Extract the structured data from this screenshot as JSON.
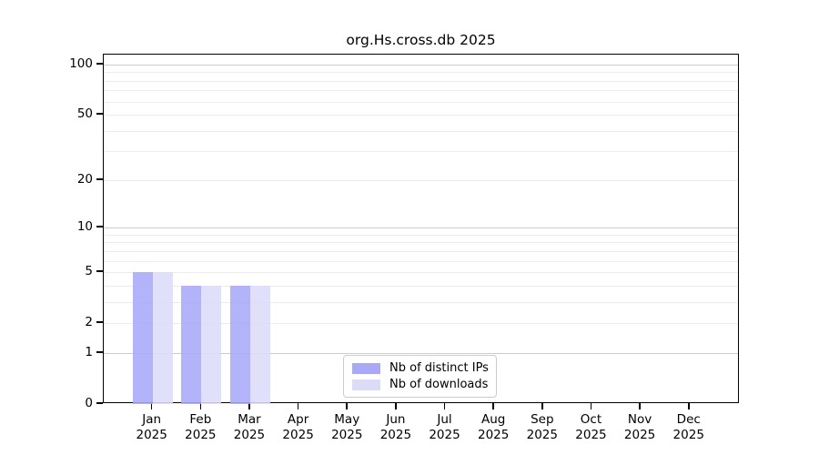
{
  "chart_data": {
    "type": "bar",
    "title": "org.Hs.cross.db 2025",
    "year_label": "2025",
    "categories": [
      "Jan",
      "Feb",
      "Mar",
      "Apr",
      "May",
      "Jun",
      "Jul",
      "Aug",
      "Sep",
      "Oct",
      "Nov",
      "Dec"
    ],
    "series": [
      {
        "name": "Nb of distinct IPs",
        "color": "#a9a9f8",
        "values": [
          5,
          4,
          4,
          0,
          0,
          0,
          0,
          0,
          0,
          0,
          0,
          0
        ]
      },
      {
        "name": "Nb of downloads",
        "color": "#dcdcf9",
        "values": [
          5,
          4,
          4,
          0,
          0,
          0,
          0,
          0,
          0,
          0,
          0,
          0
        ]
      }
    ],
    "yticks": [
      100,
      50,
      20,
      10,
      5,
      2,
      1,
      0
    ],
    "yscale": "log1p",
    "ylim": [
      0,
      115
    ],
    "xlabel": "",
    "ylabel": "",
    "grid": "horizontal",
    "legend_position": "bottom-center"
  }
}
